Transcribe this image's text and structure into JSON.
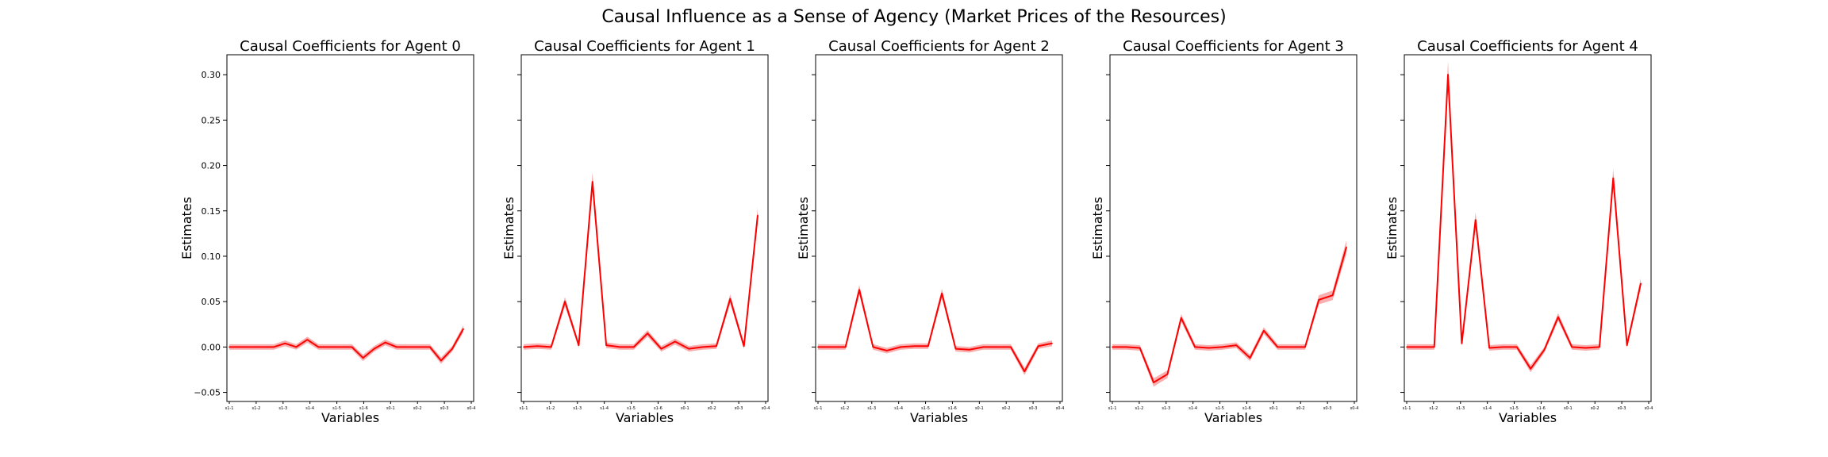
{
  "figure": {
    "suptitle": "Causal Influence as a Sense of Agency (Market Prices of the Resources)"
  },
  "axes": {
    "xlabel": "Variables",
    "ylabel": "Estimates",
    "ylim": [
      -0.06,
      0.322
    ],
    "yticks": [
      -0.05,
      0.0,
      0.05,
      0.1,
      0.15,
      0.2,
      0.25,
      0.3
    ],
    "ytick_labels": [
      "−0.05",
      "0.00",
      "0.05",
      "0.10",
      "0.15",
      "0.20",
      "0.25",
      "0.30"
    ],
    "xticks": [
      0,
      3,
      6,
      9,
      12,
      15,
      18,
      21,
      24,
      27
    ],
    "xtick_labels": [
      "s1-1",
      "s1-2",
      "s1-3",
      "s1-4",
      "s1-5",
      "s1-6",
      "s0-1",
      "s0-2",
      "s0-3",
      "s0-4"
    ],
    "xlim": [
      0,
      28
    ]
  },
  "colors": {
    "line": "#ff0000",
    "band": "#f26d6d"
  },
  "chart_data": [
    {
      "type": "line",
      "title": "Causal Coefficients for Agent 0",
      "x": [
        0,
        1,
        2,
        3,
        4,
        5,
        6,
        7,
        8,
        9,
        10,
        11,
        12,
        13,
        14,
        15,
        16,
        17,
        18,
        19,
        20,
        21,
        22,
        23,
        24,
        25,
        26
      ],
      "series": [
        {
          "values": [
            0.0,
            0.0,
            0.0,
            0.0,
            0.004,
            0.0,
            0.008,
            0.0,
            0.0,
            0.0,
            0.0,
            -0.012,
            -0.002,
            0.005,
            0.0,
            0.0,
            0.0,
            0.0,
            -0.015,
            -0.002,
            0.02
          ],
          "x": [
            0,
            2,
            3,
            4,
            5,
            6,
            7,
            8,
            9,
            10,
            11,
            12,
            13,
            14,
            15,
            16,
            17,
            18,
            19,
            20,
            21
          ]
        }
      ]
    },
    {
      "type": "line",
      "title": "Causal Coefficients for Agent 1",
      "x": [
        0,
        1,
        2,
        3,
        4,
        5,
        6,
        7,
        8,
        9,
        10,
        11,
        12,
        13,
        14,
        15,
        16,
        17,
        18,
        19,
        20,
        21,
        22,
        23,
        24,
        25,
        26
      ],
      "series": [
        {
          "values": [
            0.0,
            0.001,
            0.0,
            0.05,
            0.002,
            0.182,
            0.002,
            0.0,
            0.0,
            0.015,
            -0.002,
            0.006,
            -0.002,
            0.0,
            0.001,
            0.053,
            0.001,
            0.145
          ],
          "x": [
            0,
            1,
            2,
            3,
            4,
            5,
            6,
            7,
            8,
            9,
            10,
            11,
            12,
            13,
            14,
            15,
            16,
            17
          ]
        }
      ]
    },
    {
      "type": "line",
      "title": "Causal Coefficients for Agent 2",
      "x": [
        0,
        1,
        2,
        3,
        4,
        5,
        6,
        7,
        8,
        9,
        10,
        11,
        12,
        13,
        14,
        15,
        16,
        17,
        18,
        19,
        20,
        21,
        22,
        23,
        24,
        25,
        26
      ],
      "series": [
        {
          "values": [
            0.0,
            0.0,
            0.0,
            0.063,
            0.0,
            -0.004,
            0.0,
            0.001,
            0.001,
            0.059,
            -0.002,
            -0.003,
            0.0,
            0.0,
            0.0,
            -0.027,
            0.001,
            0.004
          ],
          "x": [
            0,
            1,
            2,
            3,
            4,
            5,
            6,
            7,
            8,
            9,
            10,
            11,
            12,
            13,
            14,
            15,
            16,
            17
          ]
        }
      ]
    },
    {
      "type": "line",
      "title": "Causal Coefficients for Agent 3",
      "x": [
        0,
        1,
        2,
        3,
        4,
        5,
        6,
        7,
        8,
        9,
        10,
        11,
        12,
        13,
        14,
        15,
        16,
        17,
        18,
        19,
        20,
        21,
        22,
        23,
        24,
        25,
        26
      ],
      "series": [
        {
          "values": [
            0.0,
            0.0,
            -0.001,
            -0.039,
            -0.03,
            0.032,
            0.0,
            -0.001,
            0.0,
            0.002,
            -0.012,
            0.018,
            0.0,
            0.0,
            0.0,
            0.052,
            0.057,
            0.11
          ],
          "x": [
            0,
            1,
            2,
            3,
            4,
            5,
            6,
            7,
            8,
            9,
            10,
            11,
            12,
            13,
            14,
            15,
            16,
            17
          ]
        }
      ]
    },
    {
      "type": "line",
      "title": "Causal Coefficients for Agent 4",
      "x": [
        0,
        1,
        2,
        3,
        4,
        5,
        6,
        7,
        8,
        9,
        10,
        11,
        12,
        13,
        14,
        15,
        16,
        17,
        18,
        19,
        20,
        21,
        22,
        23,
        24,
        25,
        26
      ],
      "series": [
        {
          "values": [
            0.0,
            0.0,
            0.0,
            0.3,
            0.004,
            0.14,
            -0.001,
            0.0,
            0.0,
            -0.024,
            -0.003,
            0.033,
            0.0,
            -0.001,
            0.0,
            0.186,
            0.002,
            0.07
          ],
          "x": [
            0,
            1,
            2,
            3,
            4,
            5,
            6,
            7,
            8,
            9,
            10,
            11,
            12,
            13,
            14,
            15,
            16,
            17
          ]
        }
      ]
    }
  ]
}
